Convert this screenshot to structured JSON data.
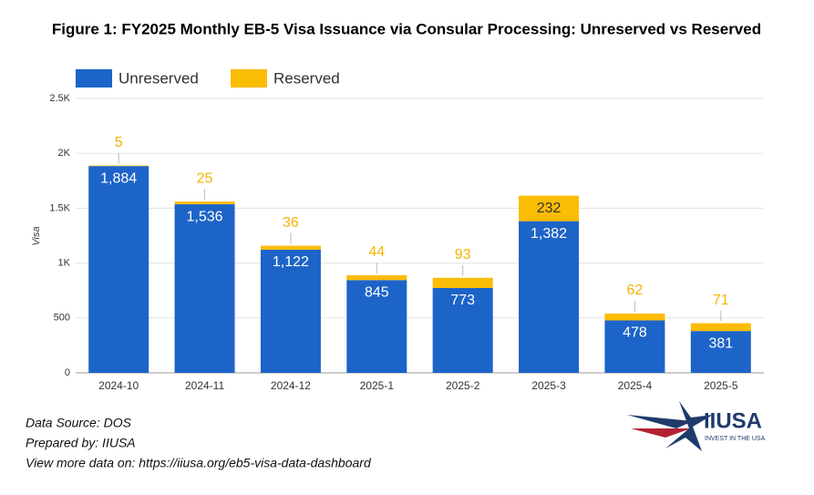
{
  "chart_data": {
    "type": "stacked-bar",
    "title": "Figure 1: FY2025 Monthly EB-5 Visa Issuance via Consular Processing: Unreserved vs Reserved",
    "y_label": "Visa",
    "categories": [
      "2024-10",
      "2024-11",
      "2024-12",
      "2025-1",
      "2025-2",
      "2025-3",
      "2025-4",
      "2025-5"
    ],
    "series": [
      {
        "name": "Unreserved",
        "color": "#1d64c8",
        "label_color": "#ffffff",
        "values": [
          1884,
          1536,
          1122,
          845,
          773,
          1382,
          478,
          381
        ],
        "value_labels": [
          "1,884",
          "1,536",
          "1,122",
          "845",
          "773",
          "1,382",
          "478",
          "381"
        ]
      },
      {
        "name": "Reserved",
        "color": "#fbbc04",
        "label_color": "#f4b400",
        "values": [
          5,
          25,
          36,
          44,
          93,
          232,
          62,
          71
        ]
      }
    ],
    "ylim": [
      0,
      2500
    ],
    "yticks": [
      0,
      500,
      {
        "value": 1000,
        "label": "1K"
      },
      {
        "value": 1500,
        "label": "1.5K"
      },
      {
        "value": 2000,
        "label": "2K"
      },
      {
        "value": 2500,
        "label": "2.5K"
      }
    ],
    "legend": "top-left"
  },
  "footer": {
    "lines": [
      "Data Source: DOS",
      "Prepared by: IIUSA",
      "View more data on: https://iiusa.org/eb5-visa-data-dashboard"
    ]
  },
  "logo": {
    "name": "IIUSA",
    "tagline": "INVEST IN THE USA"
  }
}
